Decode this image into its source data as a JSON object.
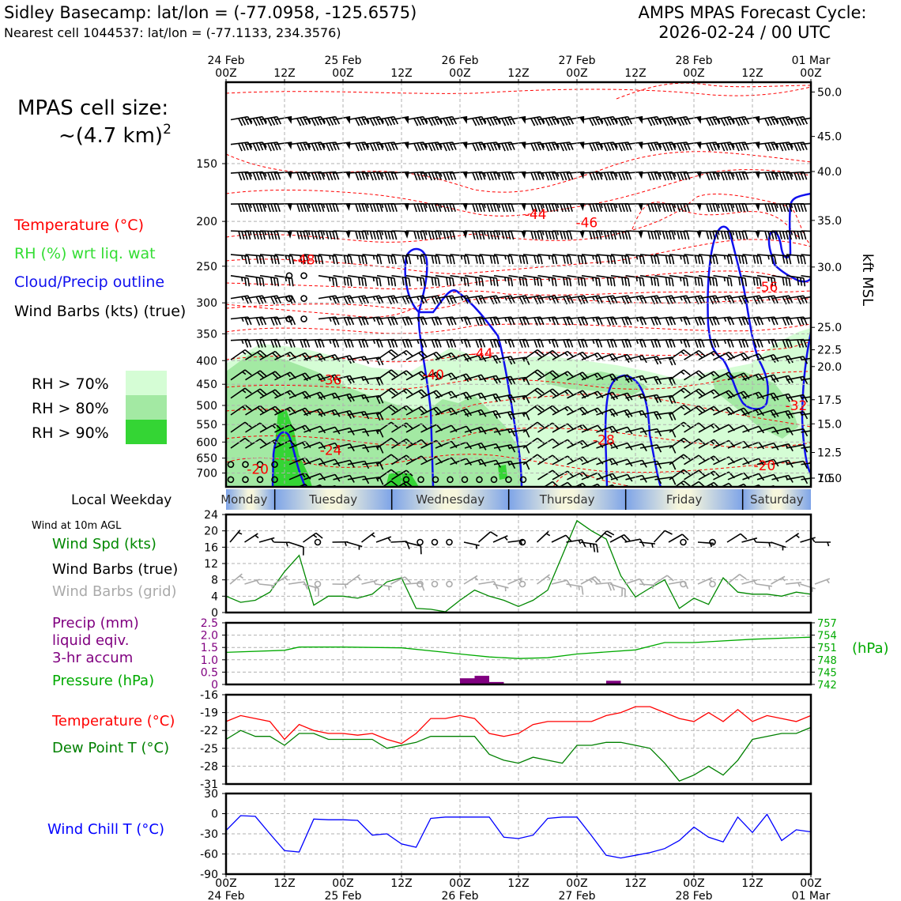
{
  "header": {
    "station_title": "Sidley Basecamp: lat/lon = (-77.0958, -125.6575)",
    "nearest_cell": "Nearest cell 1044537: lat/lon = (-77.1133, 234.3576)",
    "forecast_title": "AMPS MPAS Forecast Cycle:",
    "forecast_cycle": "2026-02-24 / 00 UTC"
  },
  "time_axis": {
    "hour_labels": [
      "00Z",
      "12Z",
      "00Z",
      "12Z",
      "00Z",
      "12Z",
      "00Z",
      "12Z",
      "00Z",
      "12Z",
      "00Z"
    ],
    "date_labels": [
      "24 Feb",
      "25 Feb",
      "26 Feb",
      "27 Feb",
      "28 Feb",
      "01 Mar"
    ],
    "date_hour_indices": [
      0,
      2,
      4,
      6,
      8,
      10
    ]
  },
  "legend": {
    "cell_size_label": "MPAS cell size:",
    "cell_size_value": "~(4.7 km)",
    "cell_size_exp": "2",
    "temperature": "Temperature (°C)",
    "rh": "RH (%) wrt liq. wat",
    "cloud": "Cloud/Precip outline",
    "wind_barbs": "Wind Barbs (kts) (true)",
    "rh_levels": [
      {
        "label": "RH > 70%",
        "color": "#d5fdd5"
      },
      {
        "label": "RH > 80%",
        "color": "#a3e9a3"
      },
      {
        "label": "RH > 90%",
        "color": "#34d534"
      }
    ]
  },
  "colors": {
    "temperature": "#ff0000",
    "rh_light": "#d5fdd5",
    "rh_mid": "#a3e9a3",
    "rh_dark": "#34d534",
    "cloud": "#1010ee",
    "wind_green": "#008800",
    "precip": "#800080",
    "pressure": "#00aa00",
    "dewpoint": "#008000",
    "windchill": "#0000ff",
    "grid_barb": "#aaaaaa"
  },
  "weekday_bar": {
    "label": "Local Weekday",
    "days": [
      "Monday",
      "Tuesday",
      "Wednesday",
      "Thursday",
      "Friday",
      "Saturday"
    ]
  },
  "chart_data": [
    {
      "type": "contour",
      "title": "Vertical cross-section",
      "ylabel_left": "Pressure (hPa)",
      "ylabel_right": "kft MSL",
      "ylim_hpa": [
        750,
        100
      ],
      "yticks_left": [
        150,
        200,
        250,
        300,
        350,
        400,
        450,
        500,
        550,
        600,
        650,
        700
      ],
      "yticks_right": [
        "50.0",
        "45.0",
        "40.0",
        "35.0",
        "30.0",
        "25.0",
        "22.5",
        "20.0",
        "17.5",
        "15.0",
        "12.5",
        "10.0",
        "7.5"
      ],
      "yticks_right_hpa": [
        105,
        131,
        156,
        199,
        251,
        339,
        379,
        412,
        486,
        548,
        632,
        718,
        782
      ],
      "temperature_contour_labels": [
        {
          "text": "-44",
          "time_h": 63.5,
          "p": 193
        },
        {
          "text": "-46",
          "time_h": 74,
          "p": 201
        },
        {
          "text": "-48",
          "time_h": 16,
          "p": 242
        },
        {
          "text": "-56",
          "time_h": 111,
          "p": 277
        },
        {
          "text": "-44",
          "time_h": 52.5,
          "p": 386
        },
        {
          "text": "-40",
          "time_h": 42.5,
          "p": 429
        },
        {
          "text": "-36",
          "time_h": 21.5,
          "p": 440
        },
        {
          "text": "-32",
          "time_h": 117,
          "p": 500
        },
        {
          "text": "-28",
          "time_h": 77.5,
          "p": 593
        },
        {
          "text": "-24",
          "time_h": 21.5,
          "p": 625
        },
        {
          "text": "-20",
          "time_h": 6.5,
          "p": 687
        },
        {
          "text": "-20",
          "time_h": 110.5,
          "p": 675
        }
      ]
    },
    {
      "type": "line",
      "title": "Wind at 10m AGL",
      "labels": [
        "Wind Spd (kts)",
        "Wind Barbs (true)",
        "Wind Barbs (grid)"
      ],
      "ylabel": "kts",
      "ylim": [
        0,
        24
      ],
      "yticks": [
        0,
        4,
        8,
        12,
        16,
        20,
        24
      ],
      "x_hours": [
        0,
        3,
        6,
        9,
        12,
        15,
        18,
        21,
        24,
        27,
        30,
        33,
        36,
        39,
        42,
        45,
        48,
        51,
        54,
        57,
        60,
        63,
        66,
        69,
        72,
        75,
        78,
        81,
        84,
        87,
        90,
        93,
        96,
        99,
        102,
        105,
        108,
        111,
        114,
        117,
        120
      ],
      "wind_speed_kts": [
        4,
        2.5,
        3,
        5,
        10,
        14,
        1.8,
        4,
        4,
        3.5,
        4.5,
        7.5,
        8.5,
        1,
        0.8,
        0.2,
        3,
        5.5,
        4,
        3,
        1.5,
        3,
        5.5,
        14,
        22.5,
        20,
        18,
        9,
        3.8,
        6,
        8,
        1,
        3.5,
        2,
        8.5,
        5,
        4.5,
        4.5,
        4,
        5,
        4.5
      ]
    },
    {
      "type": "bar+line",
      "title": "Precip and Pressure",
      "labels": [
        "Precip (mm)",
        "liquid eqiv.",
        "3-hr accum",
        "Pressure (hPa)"
      ],
      "precip_ylim": [
        0,
        2.5
      ],
      "precip_yticks": [
        "0",
        "0.5",
        "1.0",
        "1.5",
        "2.0",
        "2.5"
      ],
      "precip_hours": [
        48,
        51,
        54,
        78
      ],
      "precip_mm": [
        0.25,
        0.35,
        0.1,
        0.15
      ],
      "pressure_ylim": [
        742,
        757
      ],
      "pressure_yticks": [
        "742",
        "745",
        "748",
        "751",
        "754",
        "757"
      ],
      "pressure_unit": "(hPa)",
      "pressure_hours": [
        0,
        12,
        15,
        24,
        36,
        45,
        48,
        54,
        60,
        66,
        72,
        84,
        90,
        96,
        108,
        120
      ],
      "pressure_hpa": [
        749.8,
        750.3,
        751.1,
        751.1,
        750.9,
        749.8,
        749.4,
        748.7,
        748.3,
        748.5,
        749.4,
        750.4,
        752.2,
        752.2,
        753,
        753.5
      ]
    },
    {
      "type": "line",
      "title": "Temperature and Dew Point",
      "labels": [
        "Temperature (°C)",
        "Dew Point T (°C)"
      ],
      "ylim": [
        -31,
        -16
      ],
      "yticks": [
        "-16",
        "-19",
        "-22",
        "-25",
        "-28",
        "-31"
      ],
      "x_hours": [
        0,
        3,
        6,
        9,
        12,
        15,
        18,
        21,
        24,
        27,
        30,
        33,
        36,
        39,
        42,
        45,
        48,
        51,
        54,
        57,
        60,
        63,
        66,
        69,
        72,
        75,
        78,
        81,
        84,
        87,
        90,
        93,
        96,
        99,
        102,
        105,
        108,
        111,
        114,
        117,
        120
      ],
      "temperature_c": [
        -20.5,
        -19.5,
        -20,
        -20.5,
        -23.5,
        -21,
        -22,
        -22.5,
        -22.5,
        -22.8,
        -22.5,
        -23.5,
        -24.2,
        -22.5,
        -20,
        -20,
        -19.5,
        -20,
        -22.5,
        -23,
        -22.5,
        -21,
        -20.5,
        -20.5,
        -20.5,
        -20.5,
        -19.5,
        -19,
        -18,
        -18,
        -19,
        -20,
        -20.5,
        -19,
        -20.5,
        -18.5,
        -20.5,
        -19.5,
        -20,
        -20.5,
        -19.5
      ],
      "dewpoint_c": [
        -23.5,
        -22,
        -23,
        -23,
        -24.5,
        -22.5,
        -22.5,
        -23.5,
        -23.5,
        -23.5,
        -23.5,
        -25,
        -24.5,
        -24,
        -23,
        -23,
        -23,
        -23,
        -26,
        -27,
        -27.5,
        -26.5,
        -27,
        -27.5,
        -24.5,
        -24.5,
        -24,
        -24,
        -24.5,
        -25,
        -27.5,
        -30.5,
        -29.5,
        -28,
        -29.5,
        -27,
        -23.5,
        -23,
        -22.5,
        -22.5,
        -21.5
      ]
    },
    {
      "type": "line",
      "title": "Wind Chill",
      "labels": [
        "Wind Chill T (°C)"
      ],
      "ylim": [
        -90,
        30
      ],
      "yticks": [
        "30",
        "0",
        "-30",
        "-60",
        "-90"
      ],
      "x_hours": [
        0,
        3,
        6,
        9,
        12,
        15,
        18,
        21,
        24,
        27,
        30,
        33,
        36,
        39,
        42,
        45,
        48,
        51,
        54,
        57,
        60,
        63,
        66,
        69,
        72,
        75,
        78,
        81,
        84,
        87,
        90,
        93,
        96,
        99,
        102,
        105,
        108,
        111,
        114,
        117,
        120
      ],
      "windchill_c": [
        -25,
        -3,
        -4,
        -30,
        -55,
        -57,
        -8,
        -9,
        -9,
        -10,
        -32,
        -30,
        -45,
        -50,
        -7,
        -5,
        -5,
        -5,
        -5,
        -35,
        -37,
        -32,
        -7,
        -5,
        -5,
        -33,
        -62,
        -66,
        -62,
        -58,
        -52,
        -40,
        -20,
        -35,
        -42,
        -5,
        -28,
        -1,
        -40,
        -24,
        -27
      ]
    }
  ],
  "bottom_axis": {
    "hour_labels": [
      "00Z",
      "12Z",
      "00Z",
      "12Z",
      "00Z",
      "12Z",
      "00Z",
      "12Z",
      "00Z",
      "12Z",
      "00Z"
    ],
    "date_labels": [
      "24 Feb",
      "25 Feb",
      "26 Feb",
      "27 Feb",
      "28 Feb",
      "01 Mar"
    ]
  },
  "wind_panel": {
    "title": "Wind at 10m AGL"
  }
}
